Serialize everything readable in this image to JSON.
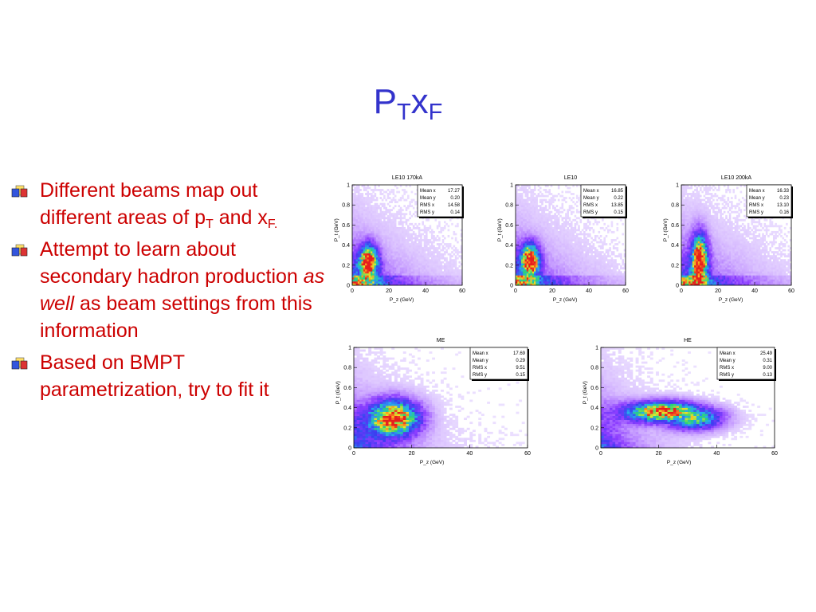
{
  "slide": {
    "title_main": "P",
    "title_sub1": "T",
    "title_x": "x",
    "title_sub2": "F"
  },
  "bullets": [
    {
      "text_a": "Different beams map out different areas of p",
      "sub_a": "T",
      "text_b": " and x",
      "sub_b": "F."
    },
    {
      "text_a": "Attempt to learn about secondary hadron production ",
      "em": "as well",
      "text_b": " as beam settings from this information"
    },
    {
      "text_a": "Based on BMPT parametrization, try to fit it"
    }
  ],
  "colors": {
    "title": "#3333cc",
    "bullet_text": "#cc0000"
  },
  "chart_data": [
    {
      "type": "heatmap",
      "title": "LE10 170kA",
      "xlabel": "P_z (GeV)",
      "ylabel": "P_t (GeV)",
      "xlim": [
        0,
        60
      ],
      "ylim": [
        0,
        1
      ],
      "x_ticks": [
        "0",
        "20",
        "40",
        "60"
      ],
      "y_ticks": [
        "0",
        "0.2",
        "0.4",
        "0.6",
        "0.8",
        "1"
      ],
      "peak": {
        "x": 9,
        "y": 0.24
      },
      "stats": [
        {
          "label": "Mean x",
          "value": "17.27"
        },
        {
          "label": "Mean y",
          "value": "0.20"
        },
        {
          "label": "RMS x",
          "value": "14.58"
        },
        {
          "label": "RMS y",
          "value": "0.14"
        }
      ]
    },
    {
      "type": "heatmap",
      "title": "LE10",
      "xlabel": "P_z (GeV)",
      "ylabel": "P_t (GeV)",
      "xlim": [
        0,
        60
      ],
      "ylim": [
        0,
        1
      ],
      "x_ticks": [
        "0",
        "20",
        "40",
        "60"
      ],
      "y_ticks": [
        "0",
        "0.2",
        "0.4",
        "0.6",
        "0.8",
        "1"
      ],
      "peak": {
        "x": 8,
        "y": 0.25
      },
      "stats": [
        {
          "label": "Mean x",
          "value": "16.85"
        },
        {
          "label": "Mean y",
          "value": "0.22"
        },
        {
          "label": "RMS x",
          "value": "13.85"
        },
        {
          "label": "RMS y",
          "value": "0.15"
        }
      ]
    },
    {
      "type": "heatmap",
      "title": "LE10 200kA",
      "xlabel": "P_z (GeV)",
      "ylabel": "P_t (GeV)",
      "xlim": [
        0,
        60
      ],
      "ylim": [
        0,
        1
      ],
      "x_ticks": [
        "0",
        "20",
        "40",
        "60"
      ],
      "y_ticks": [
        "0",
        "0.2",
        "0.4",
        "0.6",
        "0.8",
        "1"
      ],
      "peak": {
        "x": 10,
        "y": 0.26
      },
      "stats": [
        {
          "label": "Mean x",
          "value": "16.33"
        },
        {
          "label": "Mean y",
          "value": "0.23"
        },
        {
          "label": "RMS x",
          "value": "13.10"
        },
        {
          "label": "RMS y",
          "value": "0.16"
        }
      ]
    },
    {
      "type": "heatmap",
      "title": "ME",
      "xlabel": "P_z (GeV)",
      "ylabel": "P_t (GeV)",
      "xlim": [
        0,
        60
      ],
      "ylim": [
        0,
        1
      ],
      "x_ticks": [
        "0",
        "20",
        "40",
        "60"
      ],
      "y_ticks": [
        "0",
        "0.2",
        "0.4",
        "0.6",
        "0.8",
        "1"
      ],
      "peak": {
        "x": 14,
        "y": 0.3
      },
      "stats": [
        {
          "label": "Mean x",
          "value": "17.69"
        },
        {
          "label": "Mean y",
          "value": "0.29"
        },
        {
          "label": "RMS x",
          "value": "9.51"
        },
        {
          "label": "RMS y",
          "value": "0.15"
        }
      ]
    },
    {
      "type": "heatmap",
      "title": "HE",
      "xlabel": "P_z (GeV)",
      "ylabel": "P_t (GeV)",
      "xlim": [
        0,
        60
      ],
      "ylim": [
        0,
        1
      ],
      "x_ticks": [
        "0",
        "20",
        "40",
        "60"
      ],
      "y_ticks": [
        "0",
        "0.2",
        "0.4",
        "0.6",
        "0.8",
        "1"
      ],
      "peak": {
        "x": 22,
        "y": 0.36
      },
      "stats": [
        {
          "label": "Mean x",
          "value": "25.49"
        },
        {
          "label": "Mean y",
          "value": "0.31"
        },
        {
          "label": "RMS x",
          "value": "9.00"
        },
        {
          "label": "RMS y",
          "value": "0.13"
        }
      ]
    }
  ]
}
